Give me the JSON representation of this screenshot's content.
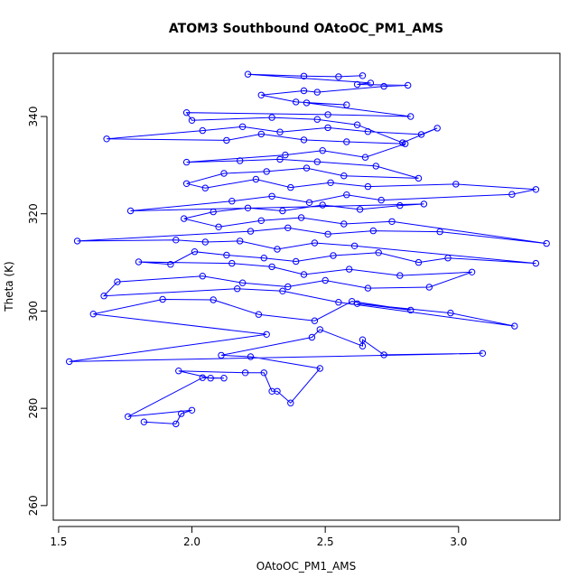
{
  "chart_data": {
    "type": "line",
    "title": "ATOM3 Southbound OAtoOC_PM1_AMS",
    "xlabel": "OAtoOC_PM1_AMS",
    "ylabel": "Theta (K)",
    "xlim": [
      1.48,
      3.38
    ],
    "ylim": [
      257,
      353
    ],
    "x_ticks": [
      1.5,
      2.0,
      2.5,
      3.0
    ],
    "x_tick_labels": [
      "1.5",
      "2.0",
      "2.5",
      "3.0"
    ],
    "y_ticks": [
      260,
      280,
      300,
      320,
      340
    ],
    "y_tick_labels": [
      "260",
      "280",
      "300",
      "320",
      "340"
    ],
    "grid": false,
    "legend": "none",
    "series_color": "#0000ff",
    "series": [
      {
        "points": [
          [
            1.82,
            277.2
          ],
          [
            1.94,
            276.8
          ],
          [
            1.96,
            278.9
          ],
          [
            2.0,
            279.6
          ],
          [
            1.76,
            278.3
          ],
          [
            2.04,
            286.3
          ],
          [
            2.12,
            286.2
          ],
          [
            2.07,
            286.2
          ],
          [
            1.95,
            287.7
          ],
          [
            2.2,
            287.3
          ],
          [
            2.27,
            287.3
          ],
          [
            2.3,
            283.5
          ],
          [
            2.32,
            283.5
          ],
          [
            2.37,
            281.1
          ],
          [
            2.48,
            288.2
          ],
          [
            2.22,
            290.6
          ],
          [
            2.11,
            290.9
          ],
          [
            2.45,
            294.6
          ],
          [
            2.48,
            296.2
          ],
          [
            2.64,
            292.8
          ],
          [
            2.64,
            294.1
          ],
          [
            2.72,
            291.0
          ],
          [
            3.09,
            291.3
          ],
          [
            1.54,
            289.6
          ],
          [
            2.28,
            295.2
          ],
          [
            1.63,
            299.4
          ],
          [
            1.89,
            302.4
          ],
          [
            2.08,
            302.3
          ],
          [
            2.25,
            299.3
          ],
          [
            2.46,
            298.0
          ],
          [
            2.6,
            302.0
          ],
          [
            2.82,
            300.2
          ],
          [
            2.62,
            301.5
          ],
          [
            2.97,
            299.6
          ],
          [
            3.21,
            296.9
          ],
          [
            2.55,
            301.8
          ],
          [
            2.34,
            304.1
          ],
          [
            2.17,
            304.6
          ],
          [
            1.67,
            303.1
          ],
          [
            1.72,
            306.0
          ],
          [
            2.04,
            307.2
          ],
          [
            2.19,
            305.8
          ],
          [
            2.36,
            305.0
          ],
          [
            2.5,
            306.3
          ],
          [
            2.66,
            304.7
          ],
          [
            2.89,
            304.9
          ],
          [
            3.05,
            308.0
          ],
          [
            2.78,
            307.3
          ],
          [
            2.59,
            308.6
          ],
          [
            2.42,
            307.5
          ],
          [
            2.3,
            309.1
          ],
          [
            2.15,
            309.8
          ],
          [
            1.8,
            310.1
          ],
          [
            1.92,
            309.6
          ],
          [
            2.01,
            312.2
          ],
          [
            2.13,
            311.5
          ],
          [
            2.27,
            310.9
          ],
          [
            2.39,
            310.2
          ],
          [
            2.53,
            311.4
          ],
          [
            2.7,
            312.0
          ],
          [
            2.85,
            310.0
          ],
          [
            2.96,
            310.9
          ],
          [
            3.29,
            309.8
          ],
          [
            2.61,
            313.4
          ],
          [
            2.46,
            314.0
          ],
          [
            2.32,
            312.7
          ],
          [
            2.18,
            314.4
          ],
          [
            2.05,
            314.2
          ],
          [
            1.94,
            314.6
          ],
          [
            1.57,
            314.4
          ],
          [
            2.22,
            316.4
          ],
          [
            2.36,
            317.1
          ],
          [
            2.51,
            315.8
          ],
          [
            2.68,
            316.5
          ],
          [
            2.93,
            316.3
          ],
          [
            3.33,
            313.9
          ],
          [
            2.75,
            318.4
          ],
          [
            2.57,
            317.9
          ],
          [
            2.41,
            319.2
          ],
          [
            2.26,
            318.6
          ],
          [
            2.1,
            317.3
          ],
          [
            1.97,
            319.0
          ],
          [
            2.08,
            320.4
          ],
          [
            2.21,
            321.2
          ],
          [
            2.34,
            320.6
          ],
          [
            2.49,
            321.8
          ],
          [
            2.63,
            320.9
          ],
          [
            2.78,
            321.7
          ],
          [
            2.87,
            322.0
          ],
          [
            1.77,
            320.6
          ],
          [
            2.15,
            322.6
          ],
          [
            2.3,
            323.6
          ],
          [
            2.44,
            322.3
          ],
          [
            2.58,
            323.9
          ],
          [
            2.71,
            322.8
          ],
          [
            3.2,
            324.0
          ],
          [
            3.29,
            325.0
          ],
          [
            2.99,
            326.1
          ],
          [
            2.66,
            325.6
          ],
          [
            2.52,
            326.4
          ],
          [
            2.37,
            325.4
          ],
          [
            2.24,
            327.1
          ],
          [
            2.05,
            325.3
          ],
          [
            1.98,
            326.2
          ],
          [
            2.12,
            328.3
          ],
          [
            2.28,
            328.7
          ],
          [
            2.43,
            329.4
          ],
          [
            2.57,
            327.8
          ],
          [
            2.85,
            327.3
          ],
          [
            2.69,
            329.8
          ],
          [
            2.47,
            330.7
          ],
          [
            2.33,
            331.2
          ],
          [
            2.18,
            330.9
          ],
          [
            1.98,
            330.6
          ],
          [
            2.35,
            332.1
          ],
          [
            2.49,
            333.0
          ],
          [
            2.65,
            331.6
          ],
          [
            2.8,
            334.4
          ],
          [
            2.58,
            334.8
          ],
          [
            2.42,
            335.2
          ],
          [
            2.26,
            336.4
          ],
          [
            2.13,
            335.1
          ],
          [
            1.68,
            335.4
          ],
          [
            2.04,
            337.1
          ],
          [
            2.19,
            337.9
          ],
          [
            2.33,
            336.8
          ],
          [
            2.51,
            337.7
          ],
          [
            2.66,
            336.9
          ],
          [
            2.86,
            336.3
          ],
          [
            2.92,
            337.6
          ],
          [
            2.79,
            334.6
          ],
          [
            2.62,
            338.3
          ],
          [
            2.47,
            339.4
          ],
          [
            2.3,
            339.8
          ],
          [
            2.0,
            339.2
          ],
          [
            1.98,
            340.8
          ],
          [
            2.51,
            340.4
          ],
          [
            2.82,
            340.0
          ],
          [
            2.43,
            342.8
          ],
          [
            2.58,
            342.4
          ],
          [
            2.39,
            343.0
          ],
          [
            2.26,
            344.4
          ],
          [
            2.42,
            345.3
          ],
          [
            2.47,
            345.0
          ],
          [
            2.72,
            346.2
          ],
          [
            2.81,
            346.4
          ],
          [
            2.62,
            346.6
          ],
          [
            2.67,
            346.9
          ],
          [
            2.21,
            348.7
          ],
          [
            2.42,
            348.3
          ],
          [
            2.55,
            348.2
          ],
          [
            2.64,
            348.4
          ]
        ]
      }
    ]
  }
}
